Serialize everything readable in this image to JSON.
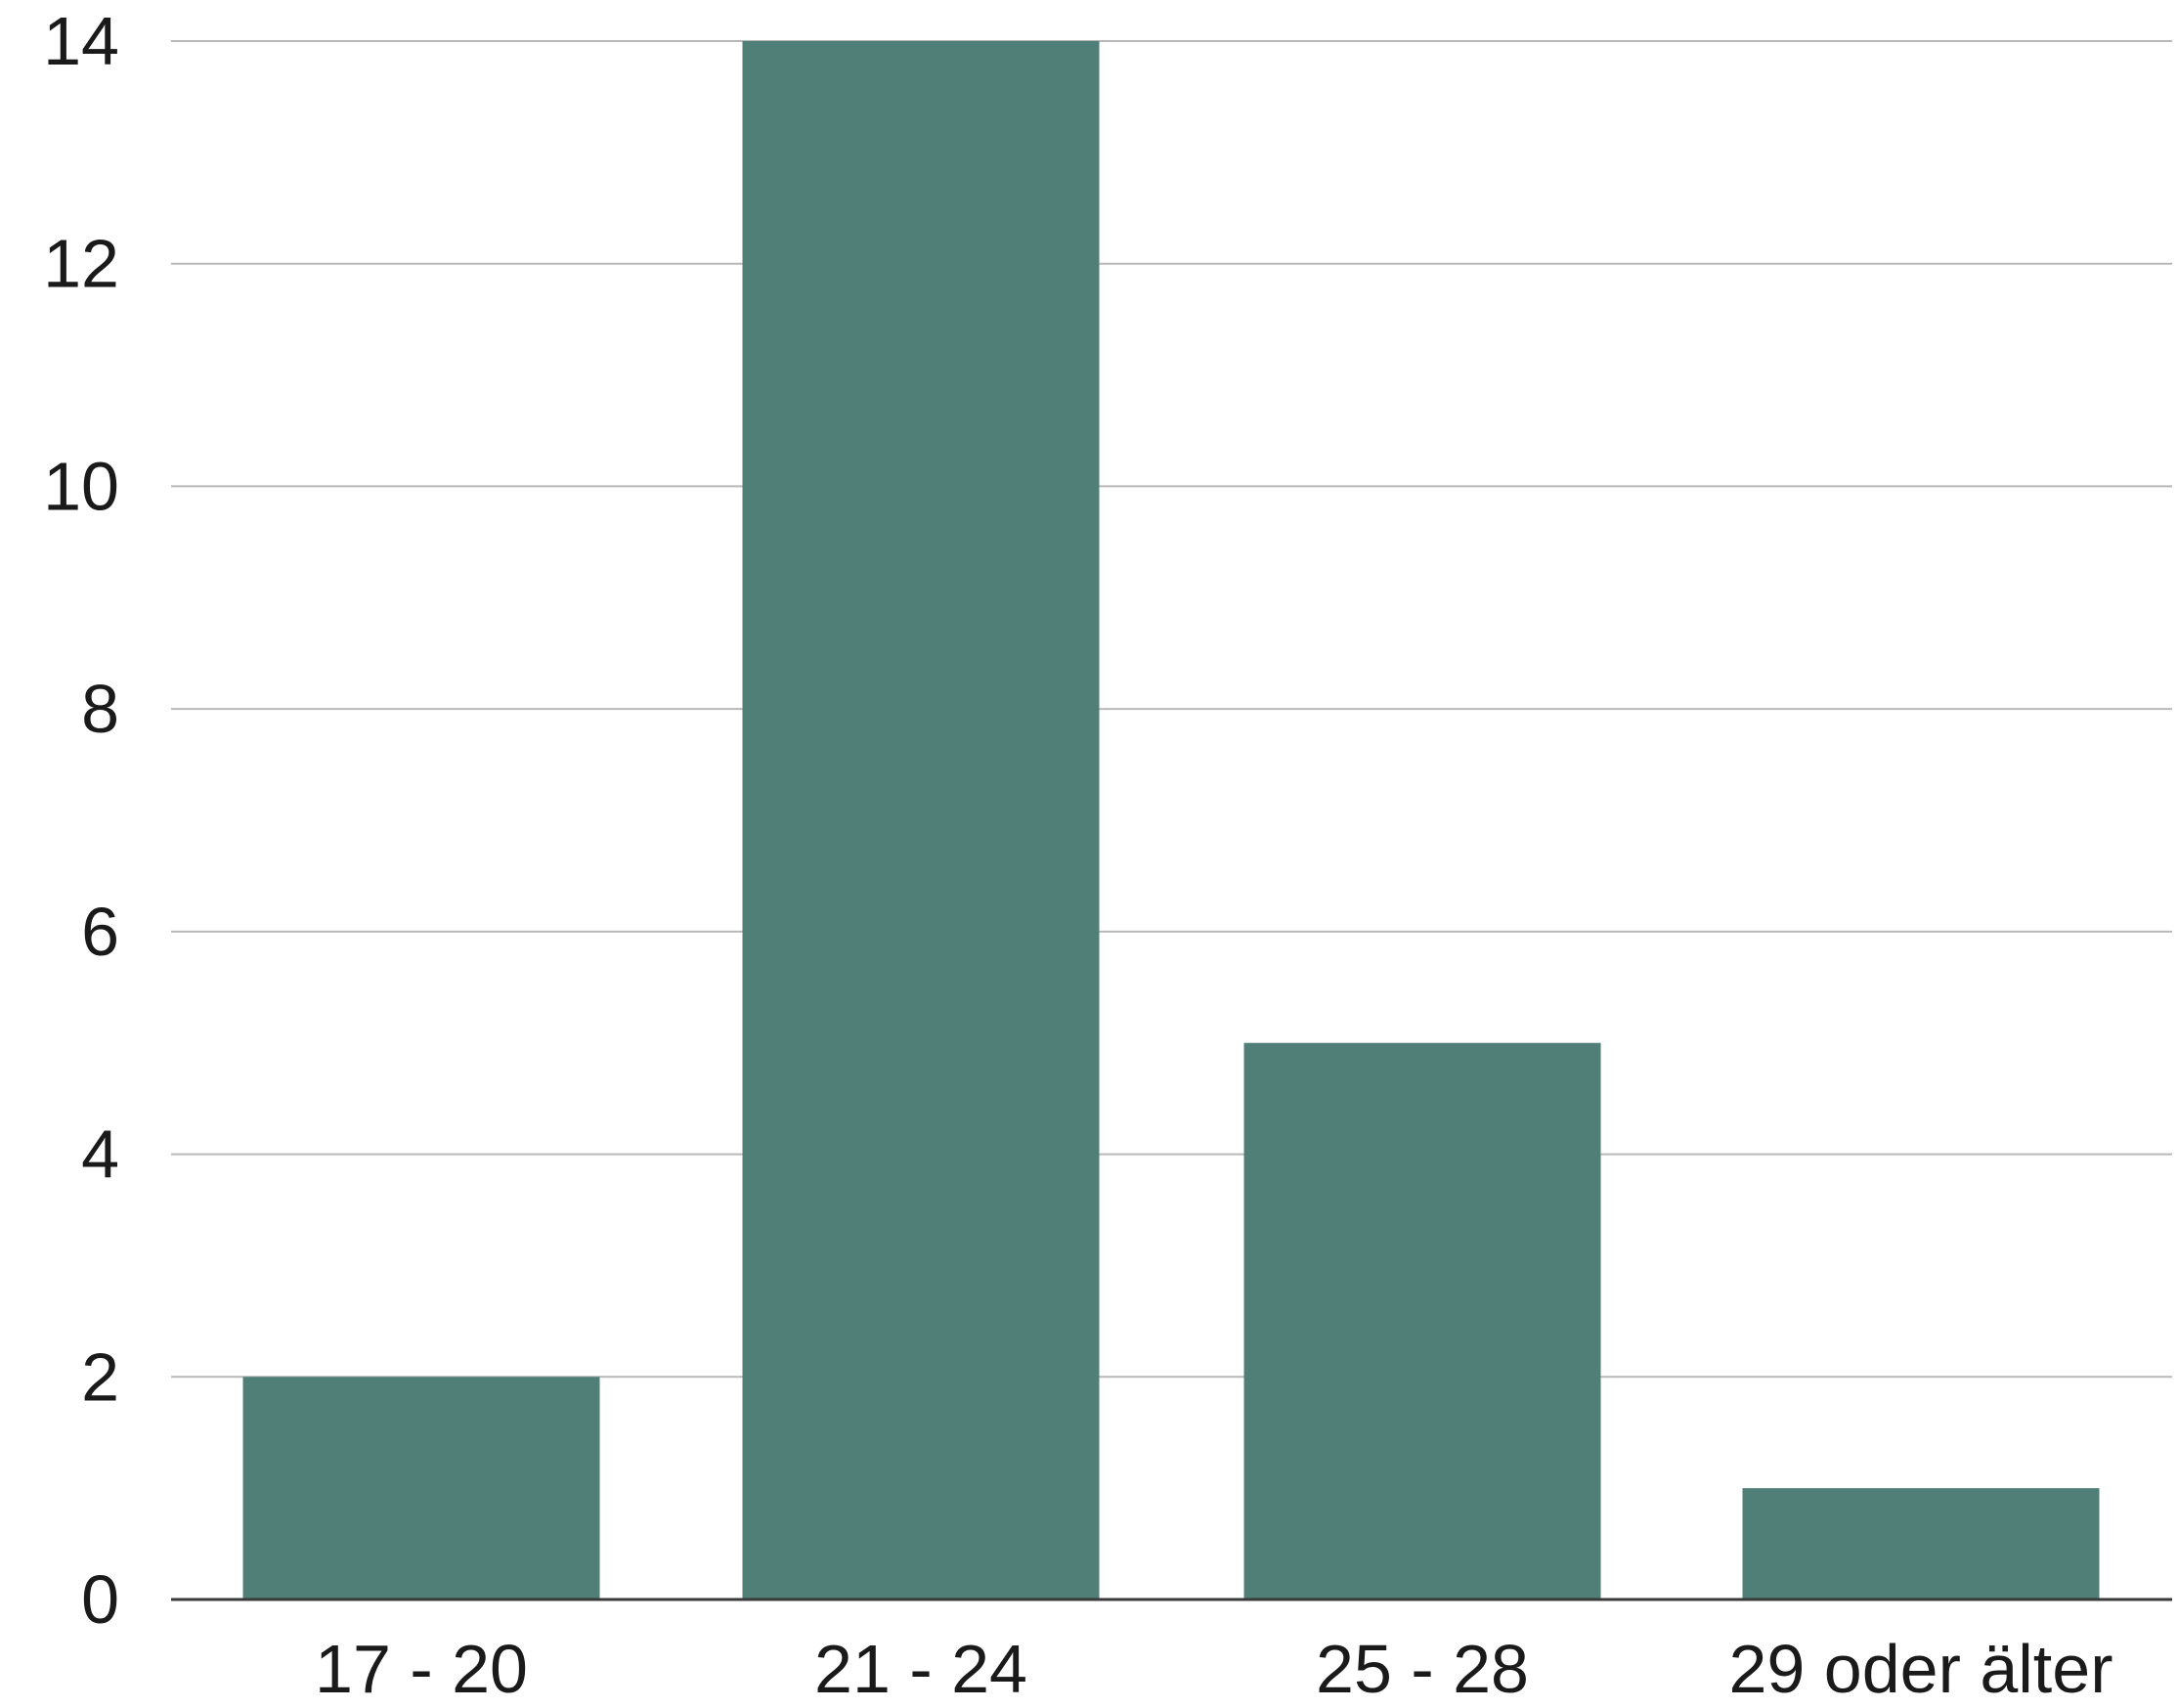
{
  "chart_data": {
    "type": "bar",
    "categories": [
      "17 - 20",
      "21 - 24",
      "25 - 28",
      "29 oder älter"
    ],
    "values": [
      2,
      14,
      5,
      1
    ],
    "title": "",
    "xlabel": "",
    "ylabel": "",
    "ylim": [
      0,
      14
    ],
    "yticks": [
      0,
      2,
      4,
      6,
      8,
      10,
      12,
      14
    ],
    "grid": true,
    "legend": "none",
    "colors": {
      "bar": "#4f7f77",
      "grid": "#b8b8b8",
      "axis": "#3a3a3a",
      "text": "#1a1a1a"
    }
  }
}
